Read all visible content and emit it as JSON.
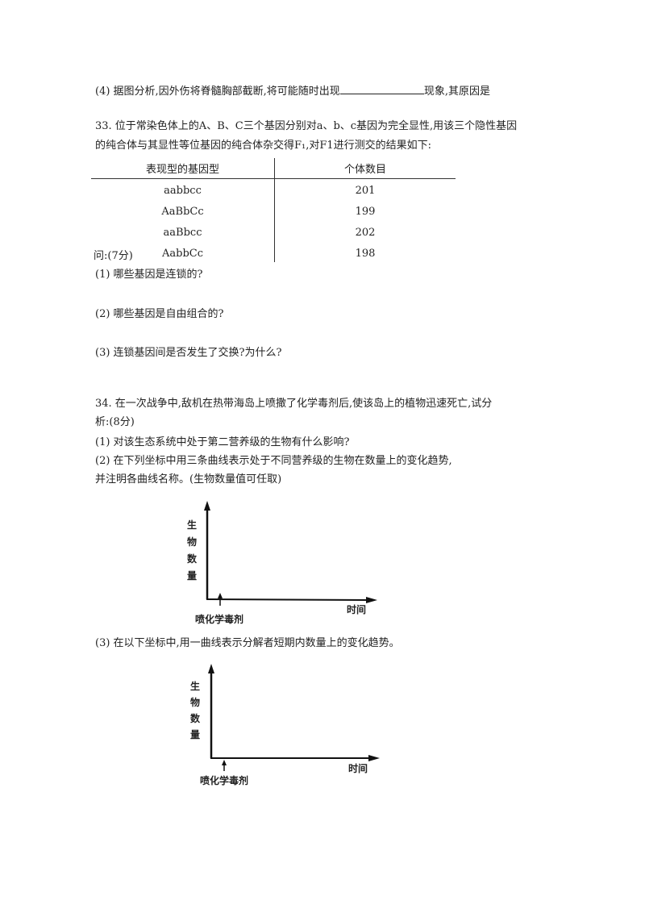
{
  "q32_4": {
    "before": "(4) 据图分析,因外伤将脊髓胸部截断,将可能随时出现",
    "after": "现象,其原因是"
  },
  "q33": {
    "line1": "33. 位于常染色体上的A、B、C三个基因分别对a、b、c基因为完全显性,用该三个隐性基因",
    "line2": "的纯合体与其显性等位基因的纯合体杂交得F₁,对F1进行测交的结果如下:",
    "table": {
      "headers": [
        "表现型的基因型",
        "个体数目"
      ],
      "rows": [
        [
          "aabbcc",
          "201"
        ],
        [
          "AaBbCc",
          "199"
        ],
        [
          "aaBbcc",
          "202"
        ],
        [
          "AabbCc",
          "198"
        ]
      ]
    },
    "ask": "问:(7分)",
    "sub1": "(1) 哪些基因是连锁的?",
    "sub2": "(2) 哪些基因是自由组合的?",
    "sub3": "(3) 连锁基因间是否发生了交换?为什么?"
  },
  "q34": {
    "line1": "34. 在一次战争中,敌机在热带海岛上喷撒了化学毒剂后,使该岛上的植物迅速死亡,试分",
    "line2": "析:(8分)",
    "sub1": "(1) 对该生态系统中处于第二营养级的生物有什么影响?",
    "sub2a": "(2) 在下列坐标中用三条曲线表示处于不同营养级的生物在数量上的变化趋势,",
    "sub2b": "并注明各曲线名称。(生物数量值可任取)",
    "sub3": "(3) 在以下坐标中,用一曲线表示分解者短期内数量上的变化趋势。",
    "chart1": {
      "ylabel": [
        "生",
        "物",
        "数",
        "量"
      ],
      "xlabel": "时间",
      "marker": "喷化学毒剂"
    },
    "chart2": {
      "ylabel": [
        "生",
        "物",
        "数",
        "量"
      ],
      "xlabel": "时间",
      "marker": "喷化学毒剂"
    }
  }
}
